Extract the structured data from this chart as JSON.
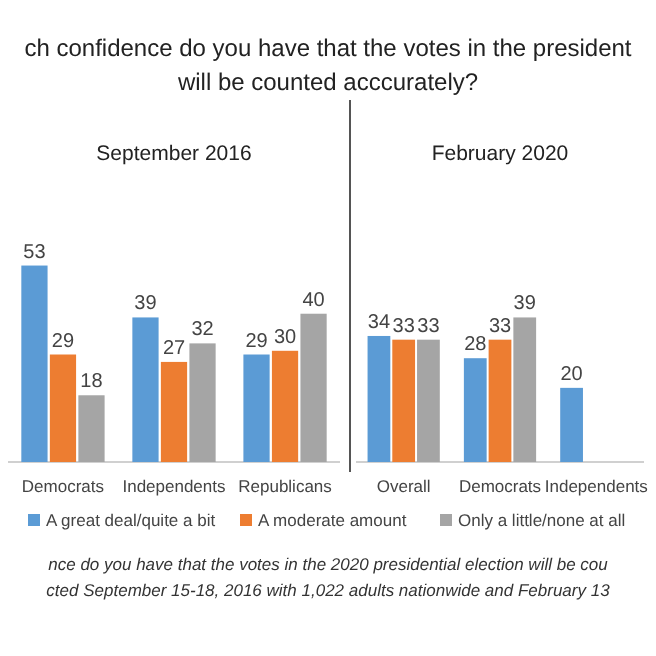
{
  "chart_data": [
    {
      "type": "bar",
      "title": "ch confidence do you have that the votes in the president\nwill be counted acccurately?",
      "subtitle": "September 2016",
      "categories": [
        "Democrats",
        "Independents",
        "Republicans"
      ],
      "series": [
        {
          "name": "A great deal/quite a bit",
          "color": "#5b9bd5",
          "values": [
            53,
            39,
            29
          ]
        },
        {
          "name": "A moderate amount",
          "color": "#ed7d31",
          "values": [
            29,
            27,
            30
          ]
        },
        {
          "name": "Only a little/none at all",
          "color": "#a5a5a5",
          "values": [
            18,
            32,
            40
          ]
        }
      ],
      "data_labels": true,
      "legend": "bottom",
      "annotations": [
        "nce do you have that the votes in the 2020 presidential election will be cou",
        "cted September 15-18, 2016 with 1,022 adults nationwide and February 13"
      ]
    },
    {
      "type": "bar",
      "subtitle": "February 2020",
      "categories": [
        "Overall",
        "Democrats",
        "Independents"
      ],
      "series": [
        {
          "color": "#5b9bd5",
          "values": [
            34,
            28,
            20
          ]
        },
        {
          "color": "#ed7d31",
          "values": [
            33,
            33,
            null
          ]
        },
        {
          "color": "#a5a5a5",
          "values": [
            33,
            39,
            null
          ]
        }
      ],
      "data_labels": true
    }
  ]
}
